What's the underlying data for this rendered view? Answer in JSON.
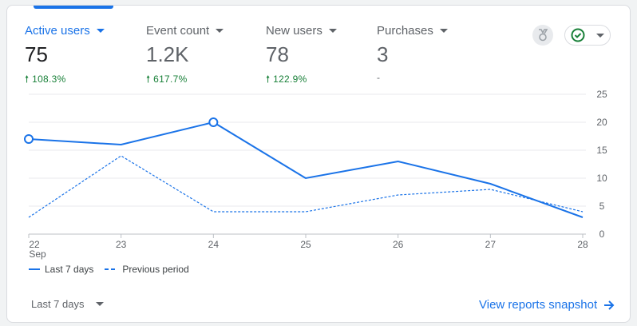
{
  "metrics": [
    {
      "label": "Active users",
      "value": "75",
      "delta": "108.3%",
      "active": true
    },
    {
      "label": "Event count",
      "value": "1.2K",
      "delta": "617.7%"
    },
    {
      "label": "New users",
      "value": "78",
      "delta": "122.9%"
    },
    {
      "label": "Purchases",
      "value": "3",
      "delta": "-"
    }
  ],
  "icons": {
    "medal": "medal-icon",
    "status": "check-circle-icon"
  },
  "colors": {
    "accent": "#1a73e8",
    "positive": "#188038"
  },
  "chart_data": {
    "type": "line",
    "x": [
      "22",
      "23",
      "24",
      "25",
      "26",
      "27",
      "28"
    ],
    "x_sublabel": "Sep",
    "ylim": [
      0,
      25
    ],
    "yticks": [
      "0",
      "5",
      "10",
      "15",
      "20",
      "25"
    ],
    "series": [
      {
        "name": "Last 7 days",
        "values": [
          17,
          16,
          20,
          10,
          13,
          9,
          3
        ],
        "style": "solid"
      },
      {
        "name": "Previous period",
        "values": [
          3,
          14,
          4,
          4,
          7,
          8,
          4
        ],
        "style": "dashed"
      }
    ]
  },
  "footer": {
    "period": "Last 7 days",
    "snapshot": "View reports snapshot"
  }
}
